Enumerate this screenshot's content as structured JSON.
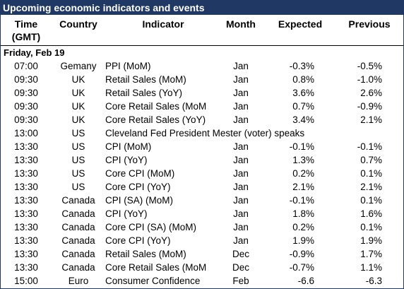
{
  "title": "Upcoming economic indicators and events",
  "headers": {
    "time": "Time",
    "time_sub": "(GMT)",
    "country": "Country",
    "indicator": "Indicator",
    "month": "Month",
    "expected": "Expected",
    "previous": "Previous"
  },
  "day": "Friday, Feb 19",
  "rows": [
    {
      "time": "07:00",
      "country": "Gemany",
      "indicator": "PPI (MoM)",
      "month": "Jan",
      "expected": "-0.3%",
      "previous": "-0.5%"
    },
    {
      "time": "09:30",
      "country": "UK",
      "indicator": "Retail Sales (MoM)",
      "month": "Jan",
      "expected": "0.8%",
      "previous": "-1.0%"
    },
    {
      "time": "09:30",
      "country": "UK",
      "indicator": "Retail Sales (YoY)",
      "month": "Jan",
      "expected": "3.6%",
      "previous": "2.6%"
    },
    {
      "time": "09:30",
      "country": "UK",
      "indicator": "Core Retail Sales (MoM",
      "month": "Jan",
      "expected": "0.7%",
      "previous": "-0.9%"
    },
    {
      "time": "09:30",
      "country": "UK",
      "indicator": "Core Retail Sales (YoY)",
      "month": "Jan",
      "expected": "3.4%",
      "previous": "2.1%"
    },
    {
      "time": "13:00",
      "country": "US",
      "indicator": "Cleveland Fed President Mester (voter) speaks",
      "month": "",
      "expected": "",
      "previous": ""
    },
    {
      "time": "13:30",
      "country": "US",
      "indicator": "CPI (MoM)",
      "month": "Jan",
      "expected": "-0.1%",
      "previous": "-0.1%"
    },
    {
      "time": "13:30",
      "country": "US",
      "indicator": "CPI (YoY)",
      "month": "Jan",
      "expected": "1.3%",
      "previous": "0.7%"
    },
    {
      "time": "13:30",
      "country": "US",
      "indicator": "Core CPI (MoM)",
      "month": "Jan",
      "expected": "0.2%",
      "previous": "0.1%"
    },
    {
      "time": "13:30",
      "country": "US",
      "indicator": "Core CPI (YoY)",
      "month": "Jan",
      "expected": "2.1%",
      "previous": "2.1%"
    },
    {
      "time": "13:30",
      "country": "Canada",
      "indicator": "CPI (SA) (MoM)",
      "month": "Jan",
      "expected": "-0.1%",
      "previous": "0.1%"
    },
    {
      "time": "13:30",
      "country": "Canada",
      "indicator": "CPI (YoY)",
      "month": "Jan",
      "expected": "1.8%",
      "previous": "1.6%"
    },
    {
      "time": "13:30",
      "country": "Canada",
      "indicator": "Core CPI (SA) (MoM)",
      "month": "Jan",
      "expected": "0.2%",
      "previous": "0.1%"
    },
    {
      "time": "13:30",
      "country": "Canada",
      "indicator": "Core CPI (YoY)",
      "month": "Jan",
      "expected": "1.9%",
      "previous": "1.9%"
    },
    {
      "time": "13:30",
      "country": "Canada",
      "indicator": "Retail Sales (MoM)",
      "month": "Dec",
      "expected": "-0.9%",
      "previous": "1.7%"
    },
    {
      "time": "13:30",
      "country": "Canada",
      "indicator": "Core Retail Sales (MoM",
      "month": "Dec",
      "expected": "-0.7%",
      "previous": "1.1%"
    },
    {
      "time": "15:00",
      "country": "Euro",
      "indicator": "Consumer Confidence",
      "month": "Feb",
      "expected": "-6.6",
      "previous": "-6.3"
    }
  ]
}
